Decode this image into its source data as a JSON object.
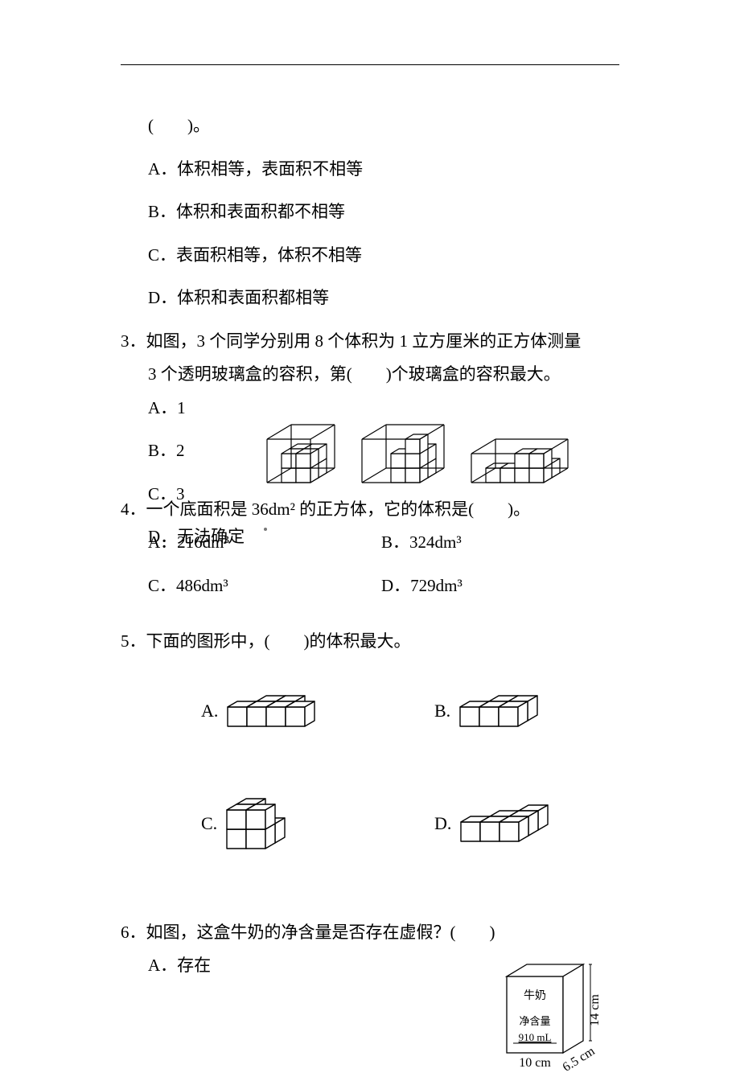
{
  "colors": {
    "text": "#000000",
    "bg": "#ffffff",
    "line": "#000000"
  },
  "q2": {
    "trailing_blank": "(　　)。",
    "options": {
      "A": "A．体积相等，表面积不相等",
      "B": "B．体积和表面积都不相等",
      "C": "C．表面积相等，体积不相等",
      "D": "D．体积和表面积都相等"
    }
  },
  "q3": {
    "stem1": "3．如图，3 个同学分别用 8 个体积为 1 立方厘米的正方体测量",
    "stem2": "3 个透明玻璃盒的容积，第(　　)个玻璃盒的容积最大。",
    "options": {
      "A": "A．1",
      "B": "B．2",
      "C": "C．3",
      "D": "D．无法确定"
    },
    "figs": {
      "stroke": "#000000",
      "stroke_width": 1.2,
      "fill": "none",
      "boxes": [
        {
          "W": 3,
          "D": 3,
          "H": 3,
          "filled": "2x2x2_corner"
        },
        {
          "W": 4,
          "D": 3,
          "H": 3,
          "filled": "8_along_edge"
        },
        {
          "W": 5,
          "D": 3,
          "H": 2,
          "filled": "row"
        }
      ]
    }
  },
  "q4": {
    "stem": "4．一个底面积是 36dm² 的正方体，它的体积是(　　)。",
    "options": {
      "A": "A．216dm³",
      "B": "B．324dm³",
      "C": "C．486dm³",
      "D": "D．729dm³"
    }
  },
  "q5": {
    "stem": "5．下面的图形中，(　　)的体积最大。",
    "labels": {
      "A": "A.",
      "B": "B.",
      "C": "C.",
      "D": "D."
    },
    "cube_style": {
      "stroke": "#000000",
      "stroke_width": 1.4,
      "fill": "#ffffff"
    },
    "cubes": {
      "A": [
        [
          0,
          0,
          0
        ],
        [
          1,
          0,
          0
        ],
        [
          2,
          0,
          0
        ],
        [
          3,
          0,
          0
        ],
        [
          1,
          1,
          0
        ],
        [
          2,
          1,
          0
        ]
      ],
      "B": [
        [
          0,
          0,
          0
        ],
        [
          1,
          0,
          0
        ],
        [
          2,
          0,
          0
        ],
        [
          1,
          1,
          0
        ],
        [
          2,
          1,
          0
        ]
      ],
      "C": [
        [
          0,
          0,
          0
        ],
        [
          1,
          0,
          0
        ],
        [
          0,
          0,
          1
        ],
        [
          1,
          0,
          1
        ],
        [
          0,
          1,
          0
        ],
        [
          1,
          1,
          0
        ],
        [
          0,
          1,
          1
        ]
      ],
      "D": [
        [
          0,
          0,
          0
        ],
        [
          1,
          0,
          0
        ],
        [
          2,
          0,
          0
        ],
        [
          1,
          1,
          0
        ],
        [
          2,
          1,
          0
        ],
        [
          2,
          2,
          0
        ]
      ]
    }
  },
  "q6": {
    "stem": "6．如图，这盒牛奶的净含量是否存在虚假？(　　)",
    "options": {
      "A": "A．存在"
    },
    "box": {
      "label1": "牛奶",
      "label2": "净含量",
      "label3": "910 mL",
      "w": "10 cm",
      "d": "6.5 cm",
      "h": "14 cm"
    }
  }
}
